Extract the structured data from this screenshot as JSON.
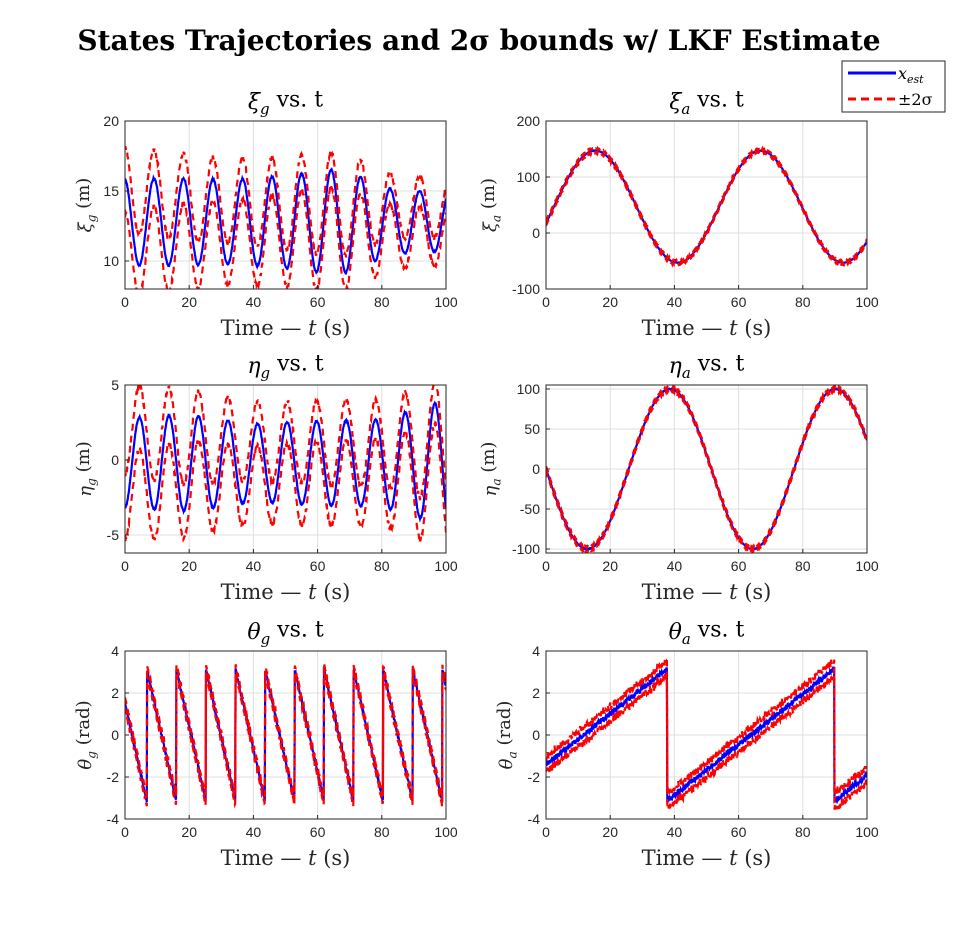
{
  "figure": {
    "title": "States Trajectories and 2σ bounds w/ LKF Estimate",
    "colors": {
      "estimate": "#0000ff",
      "bounds": "#ff0000",
      "grid": "#dfdfdf",
      "axes": "#262626"
    }
  },
  "legend": {
    "placement": "top-right",
    "entries": [
      {
        "label": "x_est",
        "color": "#0000ff",
        "style": "solid"
      },
      {
        "label": "±2σ",
        "color": "#ff0000",
        "style": "dashed"
      }
    ]
  },
  "chart_data": [
    {
      "id": "xi_g",
      "type": "line",
      "title_base": "ξ",
      "title_sub": "g",
      "title_rest": " vs. t",
      "xlabel": "Time — t (s)",
      "ylabel_base": "ξ",
      "ylabel_sub": "g",
      "ylabel_rest": " (m)",
      "xlim": [
        0,
        100
      ],
      "ylim": [
        8,
        20
      ],
      "xticks": [
        0,
        20,
        40,
        60,
        80,
        100
      ],
      "yticks": [
        10,
        15,
        20
      ],
      "grid": true,
      "signal": {
        "kind": "sine",
        "offset": 12.8,
        "amp": [
          3.1,
          3.1,
          3.0,
          3.3,
          3.8,
          2.3,
          2.1
        ],
        "period": 9.2,
        "phase": 1.7,
        "noise": 0.05
      },
      "bounds": {
        "half_width": [
          2.3,
          1.6,
          1.3,
          1.2,
          1.0
        ],
        "noise": 0.15
      }
    },
    {
      "id": "xi_a",
      "type": "line",
      "title_base": "ξ",
      "title_sub": "a",
      "title_rest": " vs. t",
      "xlabel": "Time — t (s)",
      "ylabel_base": "ξ",
      "ylabel_sub": "a",
      "ylabel_rest": " (m)",
      "xlim": [
        0,
        100
      ],
      "ylim": [
        -100,
        200
      ],
      "xticks": [
        0,
        20,
        40,
        60,
        80,
        100
      ],
      "yticks": [
        -100,
        0,
        100,
        200
      ],
      "grid": true,
      "signal": {
        "kind": "sine",
        "offset": 47,
        "amp": [
          100,
          100
        ],
        "period": 51.5,
        "phase": -0.3,
        "noise": 0.3
      },
      "bounds": {
        "half_width": [
          4,
          3,
          3
        ],
        "noise": 1.2
      }
    },
    {
      "id": "eta_g",
      "type": "line",
      "title_base": "η",
      "title_sub": "g",
      "title_rest": " vs. t",
      "xlabel": "Time — t (s)",
      "ylabel_base": "η",
      "ylabel_sub": "g",
      "ylabel_rest": " (m)",
      "xlim": [
        0,
        100
      ],
      "ylim": [
        -6.2,
        5
      ],
      "xticks": [
        0,
        20,
        40,
        60,
        80,
        100
      ],
      "yticks": [
        -5,
        0,
        5
      ],
      "grid": true,
      "signal": {
        "kind": "sine",
        "offset": -0.2,
        "amp": [
          3.0,
          3.2,
          2.6,
          2.8,
          2.9,
          4.2
        ],
        "period": 9.2,
        "phase": -1.5,
        "noise": 0.05
      },
      "bounds": {
        "half_width": [
          2.2,
          1.6,
          1.4,
          1.3,
          1.4
        ],
        "noise": 0.15
      }
    },
    {
      "id": "eta_a",
      "type": "line",
      "title_base": "η",
      "title_sub": "a",
      "title_rest": " vs. t",
      "xlabel": "Time — t (s)",
      "ylabel_base": "η",
      "ylabel_sub": "a",
      "ylabel_rest": " (m)",
      "xlim": [
        0,
        100
      ],
      "ylim": [
        -105,
        105
      ],
      "xticks": [
        0,
        20,
        40,
        60,
        80,
        100
      ],
      "yticks": [
        -100,
        -50,
        0,
        50,
        100
      ],
      "grid": true,
      "signal": {
        "kind": "sine",
        "offset": 0,
        "amp": [
          100,
          100
        ],
        "period": 51.5,
        "phase": 3.14,
        "noise": 0.3
      },
      "bounds": {
        "half_width": [
          3,
          2.5,
          2.5
        ],
        "noise": 1
      }
    },
    {
      "id": "theta_g",
      "type": "line",
      "title_base": "θ",
      "title_sub": "g",
      "title_rest": " vs. t",
      "xlabel": "Time — t (s)",
      "ylabel_base": "θ",
      "ylabel_sub": "g",
      "ylabel_rest": " (rad)",
      "xlim": [
        0,
        100
      ],
      "ylim": [
        -4,
        4
      ],
      "xticks": [
        0,
        20,
        40,
        60,
        80,
        100
      ],
      "yticks": [
        -4,
        -2,
        0,
        2,
        4
      ],
      "grid": true,
      "signal": {
        "kind": "wrap",
        "start": 1.5,
        "rate": -0.683,
        "noise": 0.08
      },
      "bounds": {
        "half_width": [
          0.25,
          0.2,
          0.2
        ],
        "noise": 0.06
      }
    },
    {
      "id": "theta_a",
      "type": "line",
      "title_base": "θ",
      "title_sub": "a",
      "title_rest": " vs. t",
      "xlabel": "Time — t (s)",
      "ylabel_base": "θ",
      "ylabel_sub": "a",
      "ylabel_rest": " (rad)",
      "xlim": [
        0,
        100
      ],
      "ylim": [
        -4,
        4
      ],
      "xticks": [
        0,
        20,
        40,
        60,
        80,
        100
      ],
      "yticks": [
        -4,
        -2,
        0,
        2,
        4
      ],
      "grid": true,
      "signal": {
        "kind": "wrap",
        "start": -1.4,
        "rate": 0.1205,
        "noise": 0.12
      },
      "bounds": {
        "half_width": [
          0.35,
          0.35,
          0.35
        ],
        "noise": 0.12
      }
    }
  ]
}
